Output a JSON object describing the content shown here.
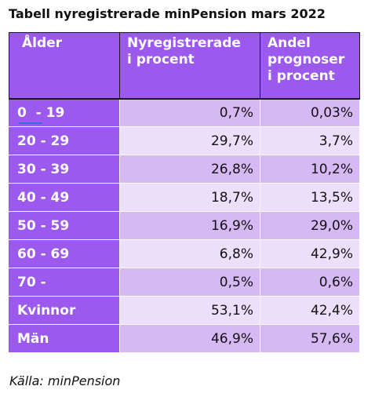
{
  "title": "Tabell nyregistrerade minPension mars 2022",
  "table": {
    "headers": {
      "age": "Ålder",
      "new_reg_line1": "Nyregistrerade",
      "new_reg_line2": "i procent",
      "forecast_line1": "Andel",
      "forecast_line2": "prognoser",
      "forecast_line3": "i procent"
    },
    "rows": [
      {
        "label": "0  - 19",
        "nyregistrerade": "0,7%",
        "prognoser": "0,03%"
      },
      {
        "label": "20 - 29",
        "nyregistrerade": "29,7%",
        "prognoser": "3,7%"
      },
      {
        "label": "30 - 39",
        "nyregistrerade": "26,8%",
        "prognoser": "10,2%"
      },
      {
        "label": "40 - 49",
        "nyregistrerade": "18,7%",
        "prognoser": "13,5%"
      },
      {
        "label": "50 - 59",
        "nyregistrerade": "16,9%",
        "prognoser": "29,0%"
      },
      {
        "label": "60 - 69",
        "nyregistrerade": "6,8%",
        "prognoser": "42,9%"
      },
      {
        "label": "70 -",
        "nyregistrerade": "0,5%",
        "prognoser": "0,6%"
      },
      {
        "label": "Kvinnor",
        "nyregistrerade": "53,1%",
        "prognoser": "42,4%"
      },
      {
        "label": "Män",
        "nyregistrerade": "46,9%",
        "prognoser": "57,6%"
      }
    ]
  },
  "source": "Källa: minPension",
  "colors": {
    "header_bg": "#9b59ee",
    "row_dark": "#d6b8f5",
    "row_light": "#ecdffb"
  }
}
